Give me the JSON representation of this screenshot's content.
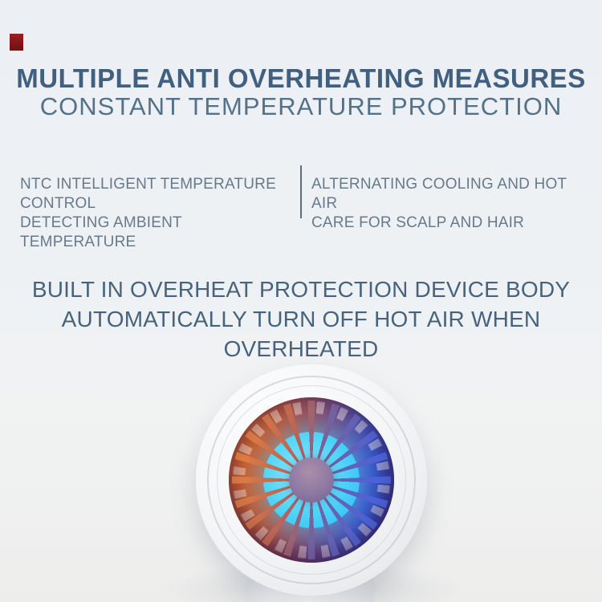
{
  "page": {
    "background_top_color": "#ecf0f4",
    "background_bottom_color": "#ededec"
  },
  "brand_mark": {
    "color": "#8a1a1d"
  },
  "headline": {
    "line1": "MULTIPLE ANTI OVERHEATING MEASURES",
    "line2": "CONSTANT TEMPERATURE PROTECTION",
    "line1_color": "#41607f",
    "line2_color": "#54718a"
  },
  "features": {
    "left": {
      "line1": "NTC INTELLIGENT TEMPERATURE CONTROL",
      "line2": "DETECTING AMBIENT TEMPERATURE"
    },
    "right": {
      "line1": "ALTERNATING COOLING AND HOT AIR",
      "line2": "CARE FOR SCALP AND HAIR"
    },
    "text_color": "#68798a",
    "divider_color": "#5c6d7c"
  },
  "subheadline": {
    "line1": "BUILT IN OVERHEAT PROTECTION DEVICE BODY",
    "line2": "AUTOMATICALLY TURN OFF HOT AIR WHEN OVERHEATED",
    "color": "#47637e"
  },
  "product_image": {
    "description": "hair dryer front view with glowing fan",
    "body_color": "#f4f5f6",
    "fan_gradient_left": "#e06c26",
    "fan_gradient_right": "#2a40ad",
    "fan_core_color": "#58d7f8",
    "hub_color": "#8d79a3"
  }
}
